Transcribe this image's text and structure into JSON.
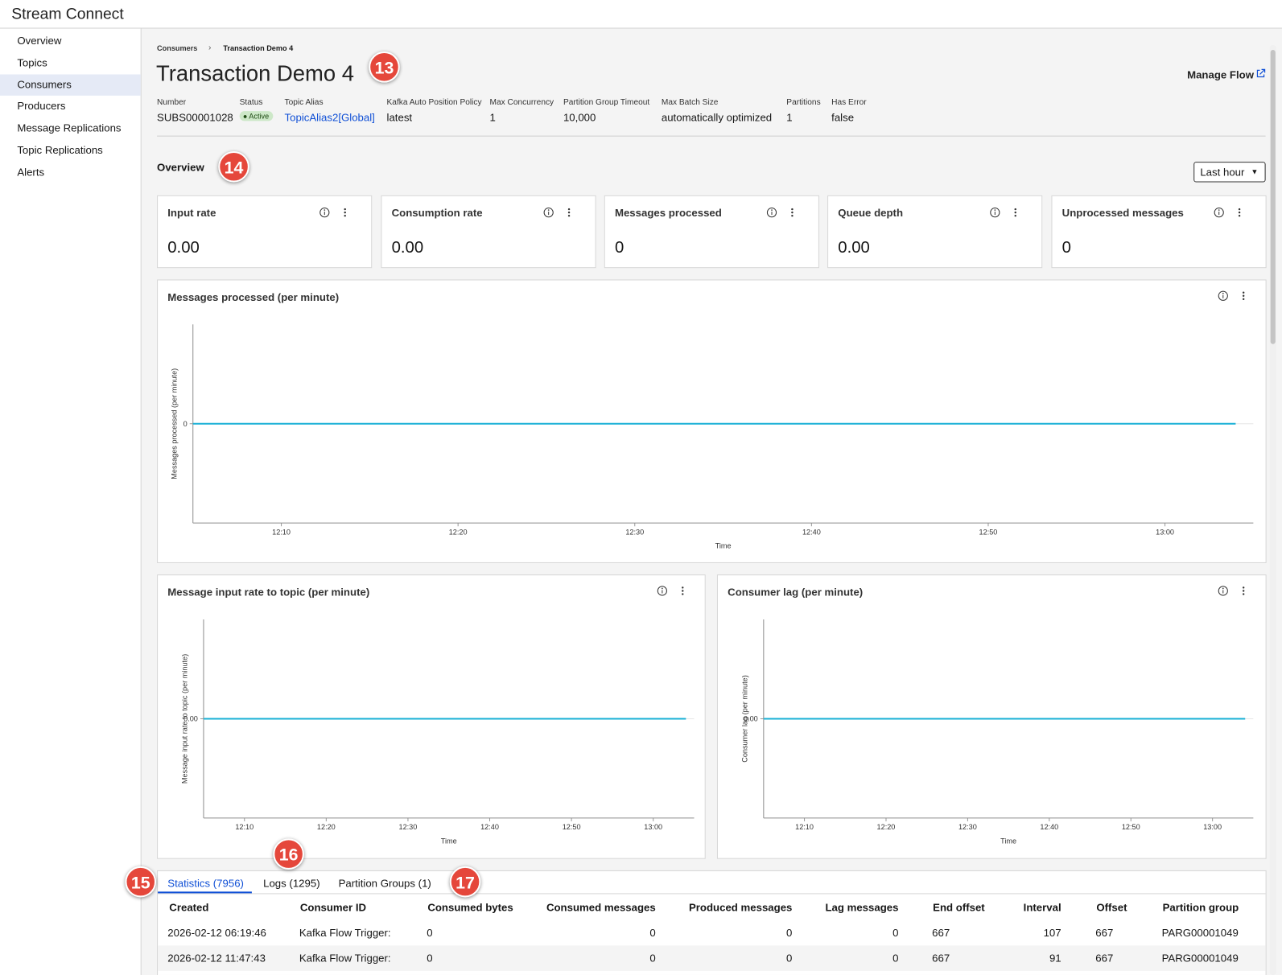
{
  "app": {
    "title": "Stream Connect"
  },
  "nav": [
    "Overview",
    "Topics",
    "Consumers",
    "Producers",
    "Message Replications",
    "Topic Replications",
    "Alerts"
  ],
  "breadcrumb": [
    "Consumers",
    "Transaction Demo 4"
  ],
  "header": {
    "title": "Transaction Demo 4",
    "action": "Manage Flow"
  },
  "properties": [
    {
      "label": "Number",
      "value": "SUBS00001028"
    },
    {
      "label": "Status",
      "value": "Active"
    },
    {
      "label": "Topic Alias",
      "value": "TopicAlias2[Global]"
    },
    {
      "label": "Kafka Auto Position Policy",
      "value": "latest"
    },
    {
      "label": "Max Concurrency",
      "value": "1"
    },
    {
      "label": "Partition Group Timeout",
      "value": "10,000"
    },
    {
      "label": "Max Batch Size",
      "value": "automatically optimized"
    },
    {
      "label": "Partitions",
      "value": "1"
    },
    {
      "label": "Has Error",
      "value": "false"
    }
  ],
  "overview": {
    "title": "Overview",
    "range": "Last hour"
  },
  "kpis": [
    {
      "label": "Input rate",
      "value": "0.00"
    },
    {
      "label": "Consumption rate",
      "value": "0.00"
    },
    {
      "label": "Messages processed",
      "value": "0"
    },
    {
      "label": "Queue depth",
      "value": "0.00"
    },
    {
      "label": "Unprocessed messages",
      "value": "0"
    }
  ],
  "chart_data": [
    {
      "type": "line",
      "title": "Messages processed (per minute)",
      "xlabel": "Time",
      "ylabel": "Messages processed (per minute)",
      "x": [
        "12:05",
        "13:04"
      ],
      "values": [
        0,
        0
      ],
      "color": "#19b0d6",
      "xlim": [
        "12:05",
        "13:05"
      ],
      "xticks": [
        "12:10",
        "12:20",
        "12:30",
        "12:40",
        "12:50",
        "13:00"
      ],
      "ylim": [
        -1,
        1
      ],
      "yticks": [
        0
      ],
      "grid": true
    },
    {
      "type": "line",
      "title": "Message input rate to topic (per minute)",
      "xlabel": "Time",
      "ylabel": "Message input rate to topic (per minute)",
      "x": [
        "12:05",
        "13:04"
      ],
      "values": [
        0,
        0
      ],
      "color": "#19b0d6",
      "xlim": [
        "12:05",
        "13:05"
      ],
      "xticks": [
        "12:10",
        "12:20",
        "12:30",
        "12:40",
        "12:50",
        "13:00"
      ],
      "ylim": [
        -1,
        1
      ],
      "yticks": [
        {
          "value": 0,
          "label": "0.00"
        }
      ],
      "grid": true
    },
    {
      "type": "line",
      "title": "Consumer lag (per minute)",
      "xlabel": "Time",
      "ylabel": "Consumer lag (per minute)",
      "x": [
        "12:05",
        "13:04"
      ],
      "values": [
        0,
        0
      ],
      "color": "#19b0d6",
      "xlim": [
        "12:05",
        "13:05"
      ],
      "xticks": [
        "12:10",
        "12:20",
        "12:30",
        "12:40",
        "12:50",
        "13:00"
      ],
      "ylim": [
        -1,
        1
      ],
      "yticks": [
        {
          "value": 0,
          "label": "0.00"
        }
      ],
      "grid": true
    }
  ],
  "tabs": [
    "Statistics (7956)",
    "Logs (1295)",
    "Partition Groups (1)"
  ],
  "table": {
    "columns": [
      "Created",
      "Consumer ID",
      "Consumed bytes",
      "Consumed messages",
      "Produced messages",
      "Lag messages",
      "End offset",
      "Interval",
      "Offset",
      "Partition group"
    ],
    "rows": [
      [
        "2026-02-12 06:19:46",
        "Kafka Flow Trigger:",
        0,
        0,
        0,
        0,
        667,
        107,
        667,
        "PARG00001049"
      ],
      [
        "2026-02-12 11:47:43",
        "Kafka Flow Trigger:",
        0,
        0,
        0,
        0,
        667,
        91,
        667,
        "PARG00001049"
      ]
    ]
  },
  "annotations": [
    "13",
    "14",
    "15",
    "16",
    "17"
  ]
}
